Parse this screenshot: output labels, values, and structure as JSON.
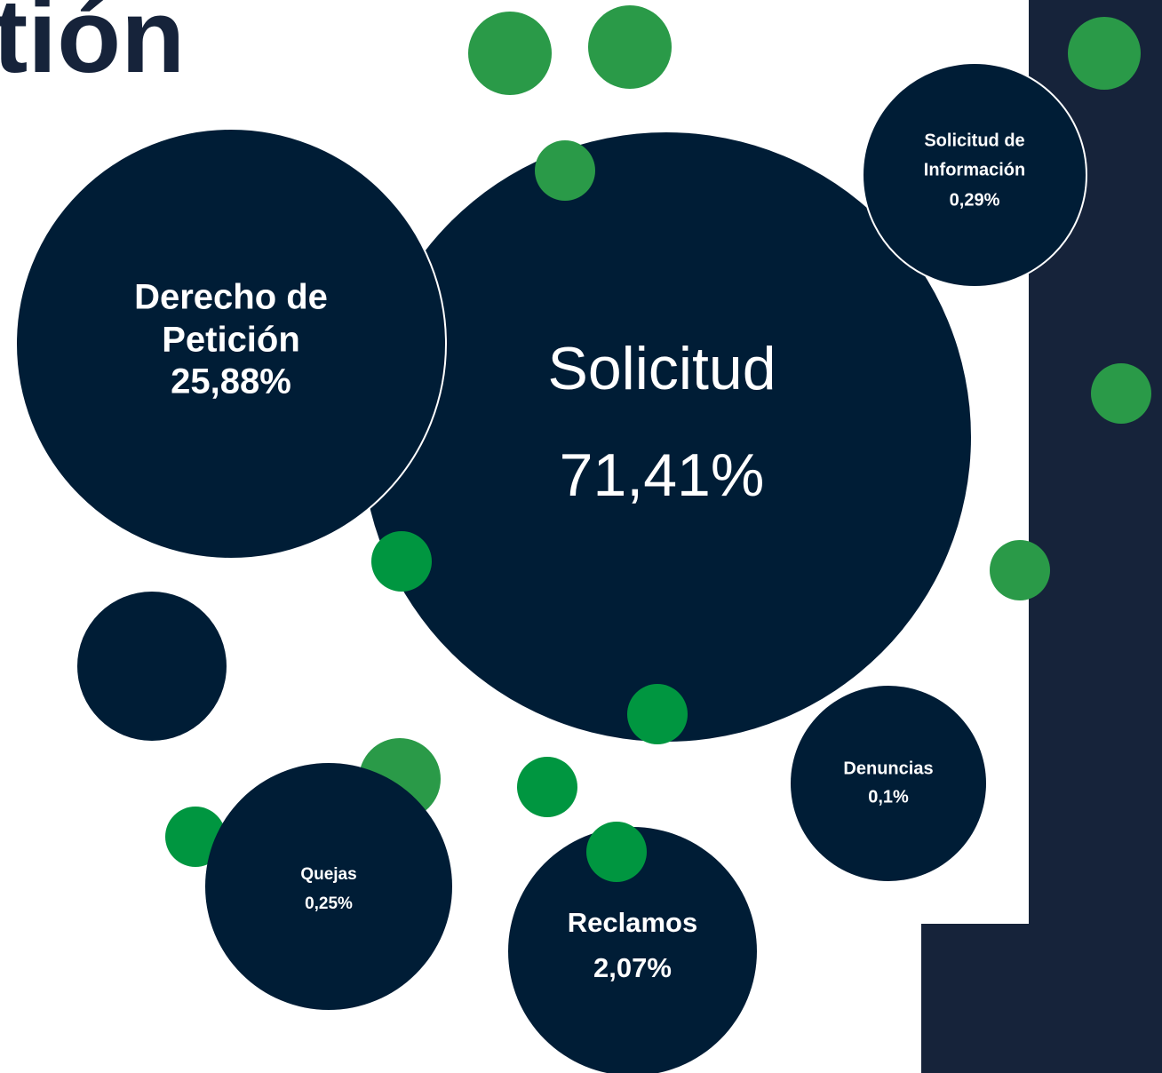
{
  "title": "tión",
  "bubbles": [
    {
      "lines": [
        "Derecho de",
        "Petición"
      ],
      "value": "25,88%"
    },
    {
      "lines": [
        "Solicitud"
      ],
      "value": "71,41%"
    },
    {
      "lines": [
        "Solicitud de",
        "Información"
      ],
      "value": "0,29%"
    },
    {
      "lines": [
        "Denuncias"
      ],
      "value": "0,1%"
    },
    {
      "lines": [
        "Quejas"
      ],
      "value": "0,25%"
    },
    {
      "lines": [
        "Reclamos"
      ],
      "value": "2,07%"
    }
  ]
}
